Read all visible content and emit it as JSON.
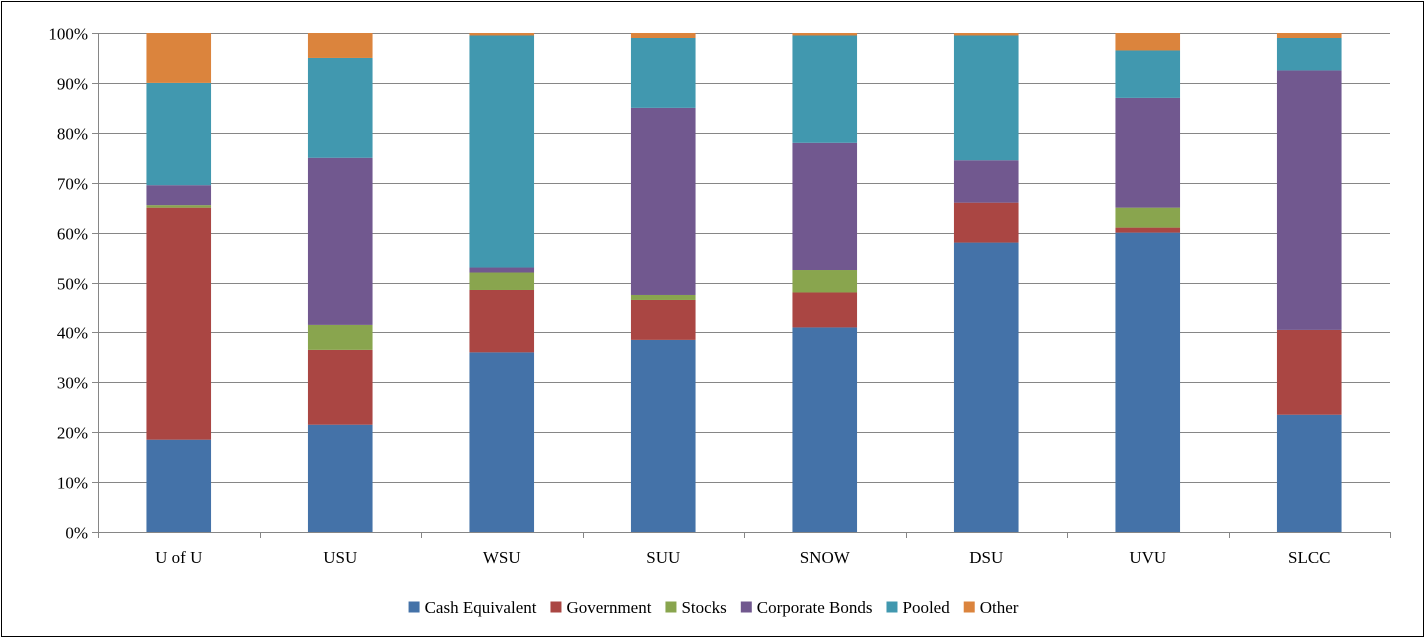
{
  "chart_data": {
    "type": "bar",
    "stacked": true,
    "percent_stacked": true,
    "title": "",
    "xlabel": "",
    "ylabel": "",
    "ylim": [
      0,
      100
    ],
    "y_ticks": [
      "0%",
      "10%",
      "20%",
      "30%",
      "40%",
      "50%",
      "60%",
      "70%",
      "80%",
      "90%",
      "100%"
    ],
    "grid": "horizontal",
    "legend_position": "bottom",
    "categories": [
      "U of U",
      "USU",
      "WSU",
      "SUU",
      "SNOW",
      "DSU",
      "UVU",
      "SLCC"
    ],
    "series": [
      {
        "name": "Cash Equivalent",
        "color": "#4472A8",
        "values": [
          18.5,
          21.5,
          36,
          38.5,
          41,
          58,
          60,
          23.5
        ]
      },
      {
        "name": "Government",
        "color": "#AA4643",
        "values": [
          46.5,
          15,
          12.5,
          8,
          7,
          8,
          1,
          17
        ]
      },
      {
        "name": "Stocks",
        "color": "#89A54E",
        "values": [
          0.5,
          5,
          3.5,
          1,
          4.5,
          0,
          4,
          0
        ]
      },
      {
        "name": "Corporate Bonds",
        "color": "#71588F",
        "values": [
          4,
          33.5,
          1,
          37.5,
          25.5,
          8.5,
          22,
          52
        ]
      },
      {
        "name": "Pooled",
        "color": "#4198AF",
        "values": [
          20.5,
          20,
          46.5,
          14,
          21.5,
          25,
          9.5,
          6.5
        ]
      },
      {
        "name": "Other",
        "color": "#DB843D",
        "values": [
          10,
          5,
          0.5,
          1,
          0.5,
          0.5,
          3.5,
          1
        ]
      }
    ]
  }
}
